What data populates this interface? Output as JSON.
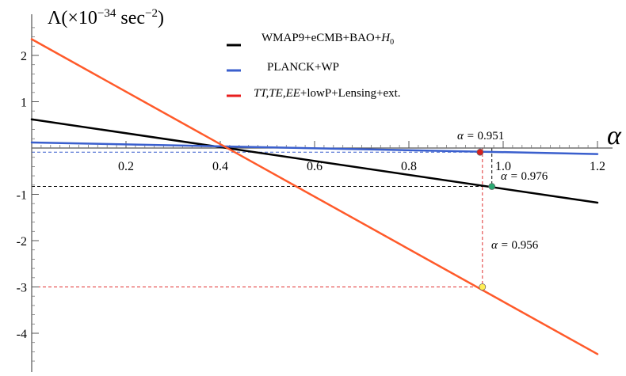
{
  "chart_data": {
    "type": "line",
    "title": "",
    "xlabel": "α",
    "ylabel": "Λ(×10⁻³⁴ sec⁻²)",
    "ylabel_parts": {
      "pre": "Λ(×10",
      "exp1": "−34",
      "mid": " sec",
      "exp2": "−2",
      "post": ")"
    },
    "xlim": [
      0,
      1.2
    ],
    "ylim": [
      -4.6,
      2.7
    ],
    "x_ticks": [
      0.2,
      0.4,
      0.6,
      0.8,
      1.0,
      1.2
    ],
    "x_tick_labels": [
      "0.2",
      "0.4",
      "0.6",
      "0.8",
      "1.0",
      "1.2"
    ],
    "y_ticks": [
      2,
      1,
      -1,
      -2,
      -3,
      -4
    ],
    "y_tick_labels": [
      "2",
      "1",
      "-1",
      "-2",
      "-3",
      "-4"
    ],
    "grid": false,
    "legend_position": "top-center",
    "series": [
      {
        "name": "WMAP9+eCMB+BAO+H0",
        "color": "#000000",
        "x": [
          0,
          1.2
        ],
        "y": [
          0.62,
          -1.18
        ]
      },
      {
        "name": "PLANCK+WP",
        "color": "#3a5fcd",
        "x": [
          0,
          1.2
        ],
        "y": [
          0.12,
          -0.13
        ]
      },
      {
        "name": "TT,TE,EE+lowP+Lensing+ext.",
        "color": "#ff5a2a",
        "x": [
          0,
          1.2
        ],
        "y": [
          2.35,
          -4.45
        ]
      }
    ],
    "legend_labels": [
      {
        "text": "WMAP9+eCMB+BAO+",
        "italic": "H",
        "sub": "0"
      },
      {
        "text": "PLANCK+WP"
      },
      {
        "italic": "TT,TE,EE",
        "text": "+lowP+Lensing+ext."
      }
    ],
    "markers": [
      {
        "x": 0.951,
        "y": -0.09,
        "color": "#d62020"
      },
      {
        "x": 0.976,
        "y": -0.83,
        "color": "#2aa872"
      },
      {
        "x": 0.956,
        "y": -3.0,
        "color": "#ffee55"
      }
    ],
    "annotations": [
      {
        "prefix": "α = ",
        "value": "0.951"
      },
      {
        "prefix": "α = ",
        "value": "0.976"
      },
      {
        "prefix": "α = ",
        "value": "0.956"
      }
    ],
    "reference_lines": [
      {
        "x": 0.951,
        "y": -0.09,
        "color": "#3a5fcd"
      },
      {
        "x": 0.976,
        "y": -0.83,
        "color": "#000000"
      },
      {
        "x": 0.956,
        "y": -3.0,
        "color": "#e03030"
      }
    ]
  }
}
